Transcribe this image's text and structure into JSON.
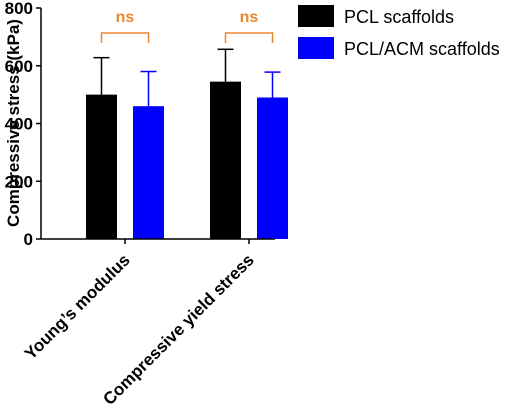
{
  "chart_data": {
    "type": "bar",
    "ylabel": "Compressive stress (kPa)",
    "ylim": [
      0,
      800
    ],
    "yticks": [
      0,
      200,
      400,
      600,
      800
    ],
    "categories": [
      "Young’s modulus",
      "Compressive yield stress"
    ],
    "series": [
      {
        "name": "PCL scaffolds",
        "color": "#000000",
        "values": [
          500,
          545
        ],
        "errors": [
          128,
          112
        ]
      },
      {
        "name": "PCL/ACM scaffolds",
        "color": "#0000ff",
        "values": [
          460,
          490
        ],
        "errors": [
          120,
          88
        ]
      }
    ],
    "annotations": [
      {
        "category": 0,
        "label": "ns"
      },
      {
        "category": 1,
        "label": "ns"
      }
    ],
    "annotation_color": "#e8882e",
    "legend_position": "top-right",
    "grid": false
  }
}
